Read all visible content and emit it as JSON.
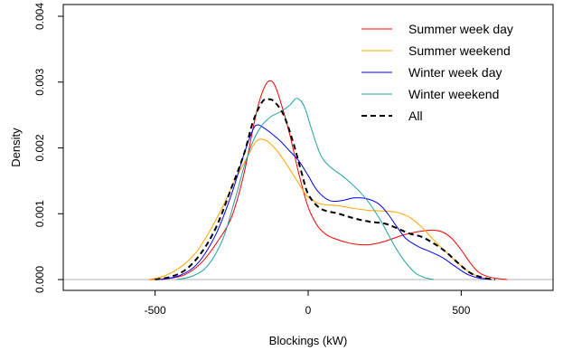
{
  "chart_data": {
    "type": "line",
    "title": "",
    "xlabel": "Blockings (kW)",
    "ylabel": "Density",
    "xlim": [
      -800,
      800
    ],
    "ylim": [
      0,
      0.004
    ],
    "xticks": [
      -500,
      0,
      500
    ],
    "xtick_labels": [
      "-500",
      "0",
      "500"
    ],
    "yticks": [
      0,
      0.001,
      0.002,
      0.003,
      0.004
    ],
    "ytick_labels": [
      "0.000",
      "0.001",
      "0.002",
      "0.003",
      "0.004"
    ],
    "baseline": 0,
    "grid": false,
    "legend_position": "top-right",
    "series": [
      {
        "name": "Summer week day",
        "color": "#ff0000",
        "dash": "solid",
        "points": [
          [
            -520,
            0
          ],
          [
            -450,
            2e-05
          ],
          [
            -400,
            8e-05
          ],
          [
            -350,
            0.00025
          ],
          [
            -300,
            0.00055
          ],
          [
            -250,
            0.00095
          ],
          [
            -210,
            0.0016
          ],
          [
            -180,
            0.0023
          ],
          [
            -160,
            0.0027
          ],
          [
            -140,
            0.00295
          ],
          [
            -125,
            0.00302
          ],
          [
            -110,
            0.00296
          ],
          [
            -90,
            0.0027
          ],
          [
            -60,
            0.0022
          ],
          [
            -30,
            0.0016
          ],
          [
            0,
            0.0011
          ],
          [
            30,
            0.00082
          ],
          [
            60,
            0.00068
          ],
          [
            100,
            0.0006
          ],
          [
            150,
            0.00054
          ],
          [
            200,
            0.00053
          ],
          [
            250,
            0.00058
          ],
          [
            300,
            0.00066
          ],
          [
            340,
            0.00071
          ],
          [
            380,
            0.00074
          ],
          [
            410,
            0.00075
          ],
          [
            440,
            0.00072
          ],
          [
            470,
            0.00062
          ],
          [
            500,
            0.00045
          ],
          [
            530,
            0.00025
          ],
          [
            560,
            0.0001
          ],
          [
            600,
            3e-05
          ],
          [
            650,
            0
          ]
        ]
      },
      {
        "name": "Summer weekend",
        "color": "#ffa500",
        "dash": "solid",
        "points": [
          [
            -520,
            0
          ],
          [
            -480,
            4e-05
          ],
          [
            -440,
            0.00012
          ],
          [
            -400,
            0.00025
          ],
          [
            -360,
            0.00045
          ],
          [
            -320,
            0.00075
          ],
          [
            -280,
            0.0011
          ],
          [
            -240,
            0.0015
          ],
          [
            -200,
            0.00185
          ],
          [
            -170,
            0.0021
          ],
          [
            -140,
            0.00212
          ],
          [
            -110,
            0.002
          ],
          [
            -80,
            0.00182
          ],
          [
            -50,
            0.0016
          ],
          [
            -20,
            0.00138
          ],
          [
            0,
            0.00125
          ],
          [
            40,
            0.00115
          ],
          [
            100,
            0.00112
          ],
          [
            150,
            0.00108
          ],
          [
            200,
            0.00105
          ],
          [
            250,
            0.00104
          ],
          [
            290,
            0.00102
          ],
          [
            330,
            0.00095
          ],
          [
            370,
            0.0008
          ],
          [
            410,
            0.0006
          ],
          [
            450,
            0.00042
          ],
          [
            490,
            0.00025
          ],
          [
            530,
            0.0001
          ],
          [
            570,
            3e-05
          ],
          [
            600,
            0
          ]
        ]
      },
      {
        "name": "Winter week day",
        "color": "#0000ff",
        "dash": "solid",
        "points": [
          [
            -480,
            0
          ],
          [
            -420,
            6e-05
          ],
          [
            -360,
            0.00025
          ],
          [
            -300,
            0.0007
          ],
          [
            -250,
            0.0013
          ],
          [
            -210,
            0.0019
          ],
          [
            -180,
            0.00228
          ],
          [
            -165,
            0.00235
          ],
          [
            -150,
            0.00232
          ],
          [
            -120,
            0.00222
          ],
          [
            -90,
            0.0021
          ],
          [
            -60,
            0.00195
          ],
          [
            -30,
            0.0018
          ],
          [
            0,
            0.00158
          ],
          [
            30,
            0.00135
          ],
          [
            70,
            0.0012
          ],
          [
            110,
            0.0012
          ],
          [
            150,
            0.00124
          ],
          [
            190,
            0.00123
          ],
          [
            230,
            0.00115
          ],
          [
            260,
            0.001
          ],
          [
            290,
            0.0008
          ],
          [
            320,
            0.00062
          ],
          [
            360,
            0.0005
          ],
          [
            400,
            0.00042
          ],
          [
            440,
            0.00033
          ],
          [
            480,
            0.0002
          ],
          [
            520,
            8e-05
          ],
          [
            560,
            2e-05
          ],
          [
            600,
            0
          ]
        ]
      },
      {
        "name": "Winter weekend",
        "color": "#20a0a0",
        "dash": "solid",
        "points": [
          [
            -430,
            0
          ],
          [
            -380,
            5e-05
          ],
          [
            -330,
            0.0002
          ],
          [
            -280,
            0.0006
          ],
          [
            -240,
            0.0012
          ],
          [
            -210,
            0.0017
          ],
          [
            -180,
            0.0021
          ],
          [
            -150,
            0.00235
          ],
          [
            -120,
            0.00248
          ],
          [
            -90,
            0.00255
          ],
          [
            -60,
            0.00265
          ],
          [
            -40,
            0.00275
          ],
          [
            -25,
            0.00272
          ],
          [
            -10,
            0.0026
          ],
          [
            10,
            0.0023
          ],
          [
            40,
            0.0019
          ],
          [
            70,
            0.00172
          ],
          [
            110,
            0.00158
          ],
          [
            150,
            0.00142
          ],
          [
            190,
            0.00122
          ],
          [
            230,
            0.00095
          ],
          [
            260,
            0.0007
          ],
          [
            290,
            0.00045
          ],
          [
            320,
            0.00025
          ],
          [
            350,
            0.0001
          ],
          [
            380,
            3e-05
          ],
          [
            410,
            0
          ]
        ]
      },
      {
        "name": "All",
        "color": "#000000",
        "dash": "dashed",
        "points": [
          [
            -500,
            0
          ],
          [
            -450,
            4e-05
          ],
          [
            -400,
            0.00015
          ],
          [
            -350,
            0.0004
          ],
          [
            -300,
            0.0008
          ],
          [
            -250,
            0.0014
          ],
          [
            -210,
            0.0019
          ],
          [
            -180,
            0.0024
          ],
          [
            -150,
            0.0027
          ],
          [
            -130,
            0.00274
          ],
          [
            -110,
            0.0027
          ],
          [
            -80,
            0.0025
          ],
          [
            -50,
            0.0021
          ],
          [
            -20,
            0.0016
          ],
          [
            0,
            0.0013
          ],
          [
            40,
            0.00108
          ],
          [
            100,
            0.001
          ],
          [
            150,
            0.00093
          ],
          [
            200,
            0.00088
          ],
          [
            250,
            0.00085
          ],
          [
            290,
            0.00078
          ],
          [
            330,
            0.0007
          ],
          [
            370,
            0.00065
          ],
          [
            410,
            0.00055
          ],
          [
            450,
            0.00042
          ],
          [
            490,
            0.00025
          ],
          [
            530,
            0.0001
          ],
          [
            570,
            3e-05
          ],
          [
            610,
            0
          ]
        ]
      }
    ]
  }
}
